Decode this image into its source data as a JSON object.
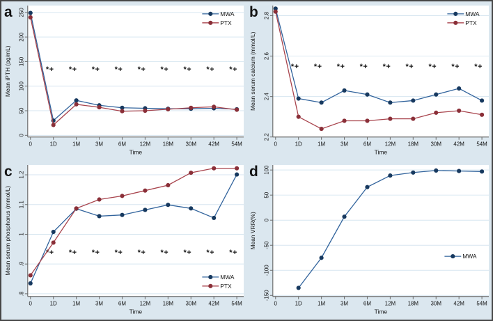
{
  "figure_title": "",
  "style": {
    "outer_background": "#dbe7ef",
    "plot_background": "#ffffff",
    "grid_color": "#d7e6f0",
    "axis_color": "#6e6e6e",
    "text_color": "#141414",
    "border_color": "#474747",
    "sig_color": "#141414",
    "series_colors": {
      "MWA": {
        "line": "#31639c",
        "marker": "#17395f"
      },
      "PTX": {
        "line": "#a8434c",
        "marker": "#8a2f38"
      }
    }
  },
  "chart_data": [
    {
      "type": "line",
      "panel_letter": "a",
      "ylabel": "Mean iPTH (pg/mL)",
      "xlabel": "Time",
      "categories": [
        "0",
        "1D",
        "1M",
        "3M",
        "6M",
        "12M",
        "18M",
        "30M",
        "42M",
        "54M"
      ],
      "ytick_values": [
        0,
        50,
        100,
        150,
        200,
        250
      ],
      "ytick_labels": [
        "0",
        "50",
        "100",
        "150",
        "200",
        "250"
      ],
      "ylim": [
        -3.4,
        264
      ],
      "grid": true,
      "series": [
        {
          "name": "MWA",
          "values": [
            249,
            30,
            71,
            61,
            56,
            55,
            54,
            54,
            55,
            53
          ]
        },
        {
          "name": "PTX",
          "values": [
            240,
            21,
            63,
            57,
            49,
            50,
            53,
            56,
            58,
            52
          ]
        }
      ],
      "sig_marks": {
        "text": "*+",
        "y": 135,
        "at": [
          "1D",
          "1M",
          "3M",
          "6M",
          "12M",
          "18M",
          "30M",
          "42M",
          "54M"
        ]
      },
      "legend": {
        "position": "top-right",
        "entries": [
          "MWA",
          "PTX"
        ]
      }
    },
    {
      "type": "line",
      "panel_letter": "b",
      "ylabel": "Mean serum calcium (mmol/L)",
      "xlabel": "Time",
      "categories": [
        "0",
        "1D",
        "1M",
        "3M",
        "6M",
        "12M",
        "18M",
        "30M",
        "42M",
        "54M"
      ],
      "ytick_values": [
        2.2,
        2.4,
        2.6,
        2.8
      ],
      "ytick_labels": [
        "2.2",
        "2.4",
        "2.6",
        "2.8"
      ],
      "ylim": [
        2.2,
        2.85
      ],
      "grid": true,
      "series": [
        {
          "name": "MWA",
          "values": [
            2.835,
            2.39,
            2.37,
            2.43,
            2.41,
            2.37,
            2.38,
            2.41,
            2.44,
            2.38
          ]
        },
        {
          "name": "PTX",
          "values": [
            2.82,
            2.3,
            2.24,
            2.28,
            2.28,
            2.29,
            2.29,
            2.32,
            2.33,
            2.31
          ]
        }
      ],
      "sig_marks": {
        "text": "*+",
        "y": 2.55,
        "at": [
          "1D",
          "1M",
          "3M",
          "6M",
          "12M",
          "18M",
          "30M",
          "42M",
          "54M"
        ]
      },
      "legend": {
        "position": "top-right",
        "entries": [
          "MWA",
          "PTX"
        ]
      }
    },
    {
      "type": "line",
      "panel_letter": "c",
      "ylabel": "Mean serum phosphorus (mmol/L)",
      "xlabel": "Time",
      "categories": [
        "0",
        "1D",
        "1M",
        "3M",
        "6M",
        "12M",
        "18M",
        "30M",
        "42M",
        "54M"
      ],
      "ytick_values": [
        0.8,
        0.9,
        1.0,
        1.1,
        1.2
      ],
      "ytick_labels": [
        ".8",
        ".9",
        "1",
        "1.1",
        "1.2"
      ],
      "ylim": [
        0.791,
        1.233
      ],
      "grid": true,
      "series": [
        {
          "name": "MWA",
          "values": [
            0.835,
            1.008,
            1.086,
            1.061,
            1.065,
            1.082,
            1.099,
            1.087,
            1.055,
            1.201
          ]
        },
        {
          "name": "PTX",
          "values": [
            0.862,
            0.972,
            1.087,
            1.117,
            1.129,
            1.147,
            1.165,
            1.207,
            1.222,
            1.222
          ]
        }
      ],
      "sig_marks": {
        "text": "*+",
        "y": 0.94,
        "at": [
          "1D",
          "1M",
          "3M",
          "6M",
          "12M",
          "18M",
          "30M",
          "42M",
          "54M"
        ]
      },
      "legend": {
        "position": "bottom-right",
        "entries": [
          "MWA",
          "PTX"
        ]
      }
    },
    {
      "type": "line",
      "panel_letter": "d",
      "ylabel": "Mean VRR(%)",
      "xlabel": "Time",
      "categories": [
        "0",
        "1D",
        "1M",
        "3M",
        "6M",
        "12M",
        "18M",
        "30M",
        "42M",
        "54M"
      ],
      "ytick_values": [
        -150,
        -100,
        -50,
        0,
        50,
        100
      ],
      "ytick_labels": [
        "-150",
        "-100",
        "-50",
        "0",
        "50",
        "100"
      ],
      "ylim": [
        -152,
        110
      ],
      "grid": true,
      "series": [
        {
          "name": "MWA",
          "values": [
            null,
            -135,
            -75,
            7,
            66,
            89,
            95,
            99,
            98,
            97
          ]
        }
      ],
      "sig_marks": null,
      "legend": {
        "position": "mid-right",
        "entries": [
          "MWA"
        ]
      }
    }
  ]
}
